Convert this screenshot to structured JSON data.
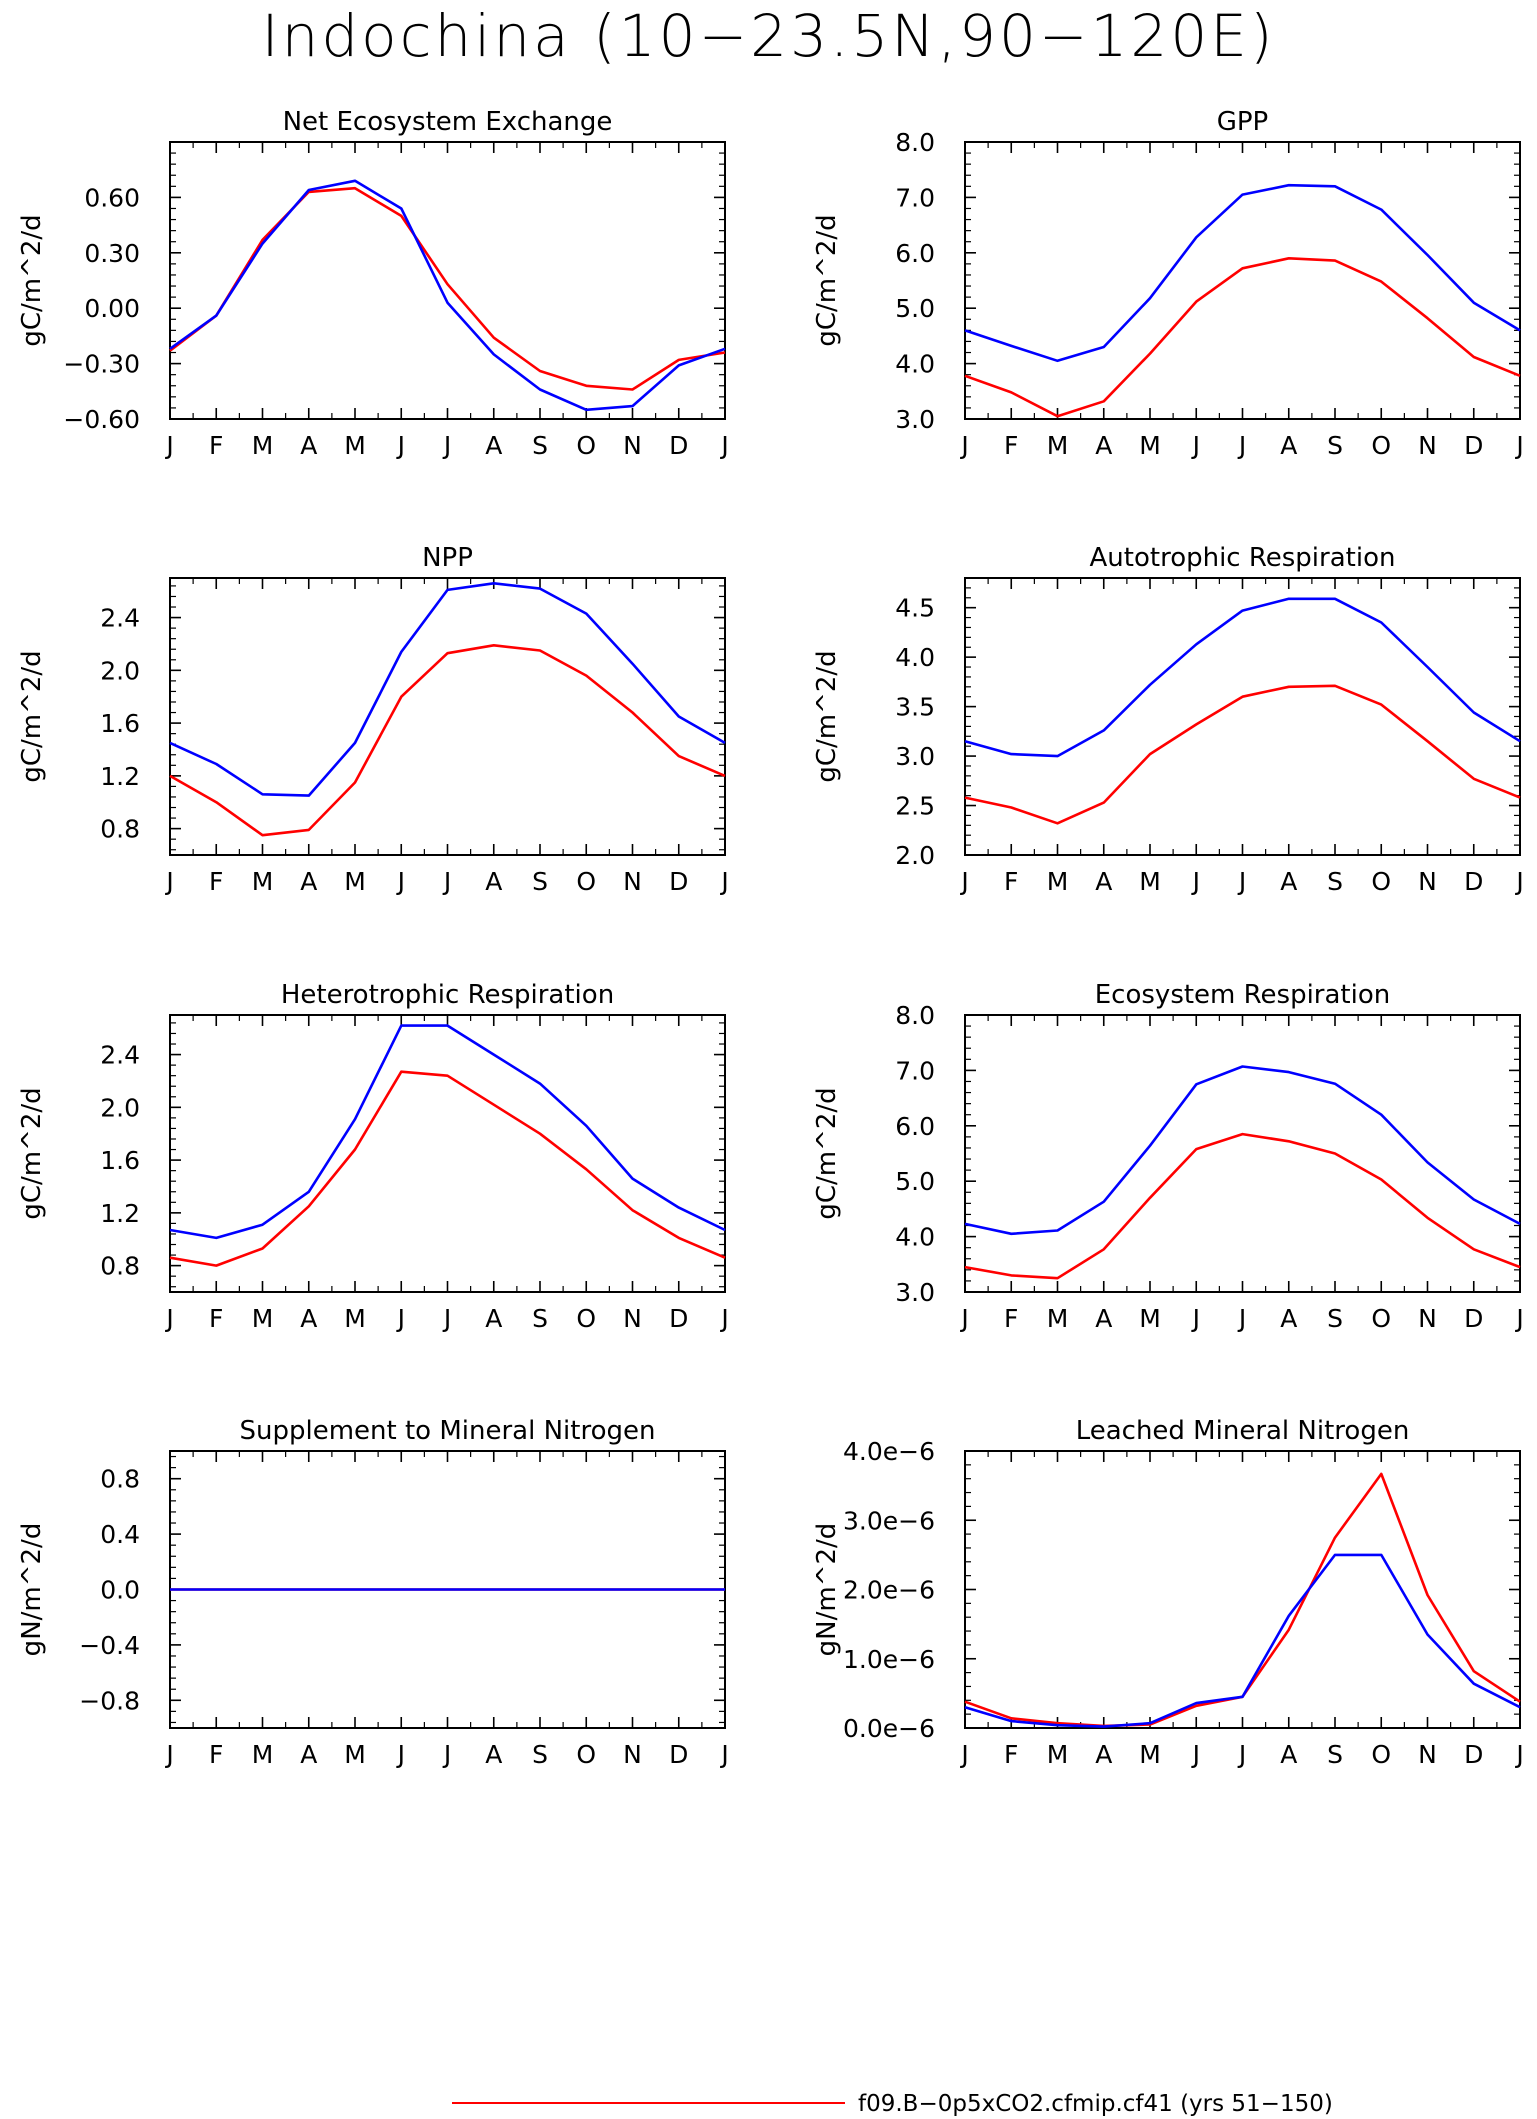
{
  "page": {
    "title": "Indochina (10−23.5N,90−120E)",
    "legend_label": "f09.B−0p5xCO2.cfmip.cf41 (yrs 51−150)"
  },
  "colors": {
    "red": "#ff0000",
    "blue": "#0000ff",
    "axis": "#000000"
  },
  "chart_data": [
    {
      "type": "line",
      "title": "Net Ecosystem Exchange",
      "ylabel": "gC/m^2/d",
      "categories": [
        "J",
        "F",
        "M",
        "A",
        "M",
        "J",
        "J",
        "A",
        "S",
        "O",
        "N",
        "D",
        "J"
      ],
      "ylim": [
        -0.6,
        0.9
      ],
      "ytick_values": [
        -0.6,
        -0.3,
        0,
        0.3,
        0.6
      ],
      "ytick_labels": [
        "−0.60",
        "−0.30",
        "0.00",
        "0.30",
        "0.60"
      ],
      "series": [
        {
          "color": "red",
          "values": [
            -0.23,
            -0.04,
            0.37,
            0.63,
            0.65,
            0.5,
            0.13,
            -0.16,
            -0.34,
            -0.42,
            -0.44,
            -0.28,
            -0.24
          ]
        },
        {
          "color": "blue",
          "values": [
            -0.22,
            -0.04,
            0.35,
            0.64,
            0.69,
            0.54,
            0.03,
            -0.25,
            -0.44,
            -0.55,
            -0.53,
            -0.31,
            -0.22
          ]
        }
      ]
    },
    {
      "type": "line",
      "title": "GPP",
      "ylabel": "gC/m^2/d",
      "categories": [
        "J",
        "F",
        "M",
        "A",
        "M",
        "J",
        "J",
        "A",
        "S",
        "O",
        "N",
        "D",
        "J"
      ],
      "ylim": [
        3.0,
        8.0
      ],
      "ytick_values": [
        3,
        4,
        5,
        6,
        7,
        8
      ],
      "ytick_labels": [
        "3.0",
        "4.0",
        "5.0",
        "6.0",
        "7.0",
        "8.0"
      ],
      "series": [
        {
          "color": "red",
          "values": [
            3.78,
            3.48,
            3.05,
            3.32,
            4.18,
            5.12,
            5.72,
            5.9,
            5.86,
            5.48,
            4.82,
            4.12,
            3.78
          ]
        },
        {
          "color": "blue",
          "values": [
            4.6,
            4.32,
            4.05,
            4.3,
            5.18,
            6.28,
            7.05,
            7.22,
            7.2,
            6.78,
            5.96,
            5.1,
            4.6
          ]
        }
      ]
    },
    {
      "type": "line",
      "title": "NPP",
      "ylabel": "gC/m^2/d",
      "categories": [
        "J",
        "F",
        "M",
        "A",
        "M",
        "J",
        "J",
        "A",
        "S",
        "O",
        "N",
        "D",
        "J"
      ],
      "ylim": [
        0.6,
        2.7
      ],
      "ytick_values": [
        0.8,
        1.2,
        1.6,
        2.0,
        2.4
      ],
      "ytick_labels": [
        "0.8",
        "1.2",
        "1.6",
        "2.0",
        "2.4"
      ],
      "series": [
        {
          "color": "red",
          "values": [
            1.2,
            1.0,
            0.75,
            0.79,
            1.15,
            1.8,
            2.13,
            2.19,
            2.15,
            1.96,
            1.68,
            1.35,
            1.2
          ]
        },
        {
          "color": "blue",
          "values": [
            1.45,
            1.29,
            1.06,
            1.05,
            1.45,
            2.14,
            2.61,
            2.66,
            2.62,
            2.43,
            2.05,
            1.65,
            1.45
          ]
        }
      ]
    },
    {
      "type": "line",
      "title": "Autotrophic Respiration",
      "ylabel": "gC/m^2/d",
      "categories": [
        "J",
        "F",
        "M",
        "A",
        "M",
        "J",
        "J",
        "A",
        "S",
        "O",
        "N",
        "D",
        "J"
      ],
      "ylim": [
        2.0,
        4.8
      ],
      "ytick_values": [
        2.0,
        2.5,
        3.0,
        3.5,
        4.0,
        4.5
      ],
      "ytick_labels": [
        "2.0",
        "2.5",
        "3.0",
        "3.5",
        "4.0",
        "4.5"
      ],
      "series": [
        {
          "color": "red",
          "values": [
            2.58,
            2.48,
            2.32,
            2.53,
            3.02,
            3.32,
            3.6,
            3.7,
            3.71,
            3.52,
            3.15,
            2.77,
            2.58
          ]
        },
        {
          "color": "blue",
          "values": [
            3.15,
            3.02,
            3.0,
            3.26,
            3.72,
            4.13,
            4.47,
            4.59,
            4.59,
            4.35,
            3.9,
            3.44,
            3.15
          ]
        }
      ]
    },
    {
      "type": "line",
      "title": "Heterotrophic Respiration",
      "ylabel": "gC/m^2/d",
      "categories": [
        "J",
        "F",
        "M",
        "A",
        "M",
        "J",
        "J",
        "A",
        "S",
        "O",
        "N",
        "D",
        "J"
      ],
      "ylim": [
        0.6,
        2.7
      ],
      "ytick_values": [
        0.8,
        1.2,
        1.6,
        2.0,
        2.4
      ],
      "ytick_labels": [
        "0.8",
        "1.2",
        "1.6",
        "2.0",
        "2.4"
      ],
      "series": [
        {
          "color": "red",
          "values": [
            0.86,
            0.8,
            0.93,
            1.25,
            1.68,
            2.27,
            2.24,
            2.02,
            1.8,
            1.53,
            1.22,
            1.01,
            0.86
          ]
        },
        {
          "color": "blue",
          "values": [
            1.07,
            1.01,
            1.11,
            1.36,
            1.91,
            2.62,
            2.62,
            2.4,
            2.18,
            1.86,
            1.46,
            1.24,
            1.07
          ]
        }
      ]
    },
    {
      "type": "line",
      "title": "Ecosystem Respiration",
      "ylabel": "gC/m^2/d",
      "categories": [
        "J",
        "F",
        "M",
        "A",
        "M",
        "J",
        "J",
        "A",
        "S",
        "O",
        "N",
        "D",
        "J"
      ],
      "ylim": [
        3.0,
        8.0
      ],
      "ytick_values": [
        3,
        4,
        5,
        6,
        7,
        8
      ],
      "ytick_labels": [
        "3.0",
        "4.0",
        "5.0",
        "6.0",
        "7.0",
        "8.0"
      ],
      "series": [
        {
          "color": "red",
          "values": [
            3.45,
            3.3,
            3.25,
            3.77,
            4.7,
            5.58,
            5.85,
            5.72,
            5.5,
            5.03,
            4.34,
            3.77,
            3.45
          ]
        },
        {
          "color": "blue",
          "values": [
            4.23,
            4.05,
            4.11,
            4.63,
            5.64,
            6.75,
            7.07,
            6.97,
            6.76,
            6.2,
            5.34,
            4.67,
            4.23
          ]
        }
      ]
    },
    {
      "type": "line",
      "title": "Supplement to Mineral Nitrogen",
      "ylabel": "gN/m^2/d",
      "categories": [
        "J",
        "F",
        "M",
        "A",
        "M",
        "J",
        "J",
        "A",
        "S",
        "O",
        "N",
        "D",
        "J"
      ],
      "ylim": [
        -1.0,
        1.0
      ],
      "ytick_values": [
        -0.8,
        -0.4,
        0,
        0.4,
        0.8
      ],
      "ytick_labels": [
        "−0.8",
        "−0.4",
        "0.0",
        "0.4",
        "0.8"
      ],
      "series": [
        {
          "color": "red",
          "values": [
            0,
            0,
            0,
            0,
            0,
            0,
            0,
            0,
            0,
            0,
            0,
            0,
            0
          ]
        },
        {
          "color": "blue",
          "values": [
            0,
            0,
            0,
            0,
            0,
            0,
            0,
            0,
            0,
            0,
            0,
            0,
            0
          ]
        }
      ]
    },
    {
      "type": "line",
      "title": "Leached Mineral Nitrogen",
      "ylabel": "gN/m^2/d",
      "categories": [
        "J",
        "F",
        "M",
        "A",
        "M",
        "J",
        "J",
        "A",
        "S",
        "O",
        "N",
        "D",
        "J"
      ],
      "ylim": [
        0,
        4e-06
      ],
      "ytick_values": [
        0,
        1e-06,
        2e-06,
        3e-06,
        4e-06
      ],
      "ytick_labels": [
        "0.0e−6",
        "1.0e−6",
        "2.0e−6",
        "3.0e−6",
        "4.0e−6"
      ],
      "series": [
        {
          "color": "red",
          "values": [
            3.8e-07,
            1.4e-07,
            7e-08,
            3e-08,
            5e-08,
            3.2e-07,
            4.5e-07,
            1.42e-06,
            2.75e-06,
            3.67e-06,
            1.92e-06,
            8.2e-07,
            3.8e-07
          ]
        },
        {
          "color": "blue",
          "values": [
            3e-07,
            1e-07,
            4e-08,
            2e-08,
            7e-08,
            3.6e-07,
            4.5e-07,
            1.62e-06,
            2.5e-06,
            2.5e-06,
            1.35e-06,
            6.4e-07,
            3e-07
          ]
        }
      ]
    }
  ]
}
